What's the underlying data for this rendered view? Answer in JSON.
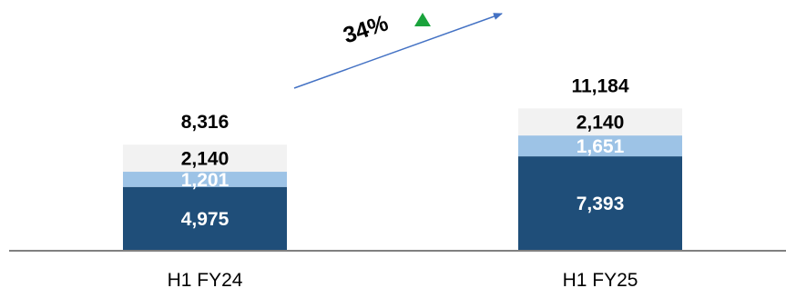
{
  "chart_data": {
    "type": "bar",
    "stacked": true,
    "categories": [
      "H1 FY24",
      "H1 FY25"
    ],
    "series": [
      {
        "values": [
          4975,
          7393
        ],
        "color": "#1f4e79",
        "label_color": "#ffffff"
      },
      {
        "values": [
          1201,
          1651
        ],
        "color": "#9dc3e6",
        "label_color": "#ffffff"
      },
      {
        "values": [
          2140,
          2140
        ],
        "color": "#f2f2f2",
        "label_color": "#000000"
      }
    ],
    "segment_labels": [
      [
        "4,975",
        "1,201",
        "2,140"
      ],
      [
        "7,393",
        "1,651",
        "2,140"
      ]
    ],
    "totals": [
      "8,316",
      "11,184"
    ],
    "growth": {
      "label": "34%",
      "arrow_color": "#4472c4",
      "marker_color": "#1aa33c"
    },
    "ylim": [
      0,
      12000
    ],
    "grid": false,
    "legend": "none"
  }
}
